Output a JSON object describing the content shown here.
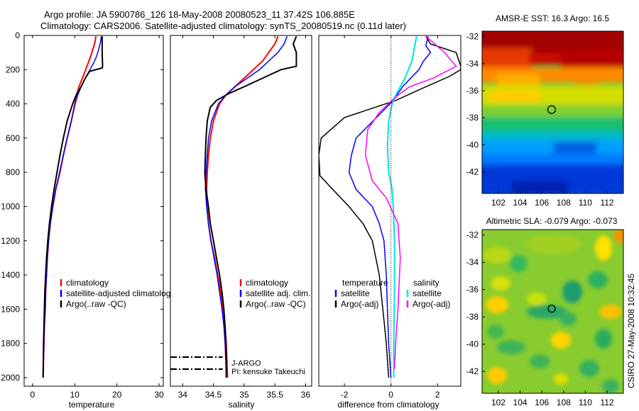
{
  "title_line1": "Argo profile: JA 5900786_126 18-May-2008 20080523_11 37.42S 106.885E",
  "title_line2": "Climatology: CARS2006. Satellite-adjusted climatology: synTS_20080519.nc (0.11d later)",
  "side_label": "CSIRO 27-May-2008 10:32:45",
  "colors": {
    "climatology": "#ff0000",
    "satellite": "#0000ff",
    "argo": "#000000",
    "sal_satellite": "#00e5e5",
    "sal_argo": "#ff00ff"
  },
  "chart_data": [
    {
      "type": "line",
      "xlabel": "temperature",
      "xlim": [
        -2,
        31
      ],
      "ylim": [
        2050,
        0
      ],
      "reversed_y": true,
      "xticks": [
        0,
        10,
        20,
        30
      ],
      "yticks": [
        0,
        200,
        400,
        600,
        800,
        1000,
        1200,
        1400,
        1600,
        1800,
        2000
      ],
      "legend": [
        "climatology",
        "satellite-adjusted climatology",
        "Argo(..raw -QC)"
      ],
      "series": [
        {
          "name": "climatology",
          "color": "#ff0000",
          "width": 2,
          "points": [
            [
              15,
              5
            ],
            [
              14.8,
              40
            ],
            [
              14.3,
              80
            ],
            [
              13.8,
              120
            ],
            [
              13.2,
              160
            ],
            [
              12.6,
              200
            ],
            [
              11.8,
              250
            ],
            [
              11,
              300
            ],
            [
              10.4,
              350
            ],
            [
              10,
              400
            ],
            [
              9.2,
              500
            ],
            [
              8.2,
              600
            ],
            [
              7.3,
              700
            ],
            [
              6.5,
              800
            ],
            [
              5.5,
              900
            ],
            [
              4.8,
              1000
            ],
            [
              4.2,
              1100
            ],
            [
              3.8,
              1200
            ],
            [
              3.5,
              1300
            ],
            [
              3.3,
              1400
            ],
            [
              3.1,
              1500
            ],
            [
              3.0,
              1600
            ],
            [
              2.8,
              1700
            ],
            [
              2.7,
              1800
            ],
            [
              2.6,
              1900
            ],
            [
              2.5,
              2000
            ]
          ]
        },
        {
          "name": "satellite-adjusted climatology",
          "color": "#0000ff",
          "width": 1.5,
          "points": [
            [
              16.3,
              5
            ],
            [
              16.1,
              40
            ],
            [
              15.7,
              80
            ],
            [
              15.2,
              120
            ],
            [
              14.5,
              160
            ],
            [
              13.6,
              200
            ],
            [
              12.5,
              250
            ],
            [
              11.5,
              300
            ],
            [
              10.7,
              350
            ],
            [
              10.1,
              400
            ],
            [
              9.2,
              500
            ],
            [
              8.2,
              600
            ],
            [
              7.3,
              700
            ],
            [
              6.4,
              800
            ],
            [
              5.5,
              900
            ],
            [
              4.8,
              1000
            ],
            [
              4.2,
              1100
            ],
            [
              3.8,
              1200
            ],
            [
              3.5,
              1300
            ],
            [
              3.3,
              1400
            ],
            [
              3.1,
              1500
            ],
            [
              3.0,
              1600
            ],
            [
              2.8,
              1700
            ],
            [
              2.7,
              1800
            ],
            [
              2.6,
              1900
            ],
            [
              2.5,
              2000
            ]
          ]
        },
        {
          "name": "Argo(..raw -QC)",
          "color": "#000000",
          "width": 2,
          "points": [
            [
              16.5,
              5
            ],
            [
              16.5,
              100
            ],
            [
              16.6,
              180
            ],
            [
              16.5,
              190
            ],
            [
              13.5,
              210
            ],
            [
              12.5,
              250
            ],
            [
              11.5,
              300
            ],
            [
              10.3,
              350
            ],
            [
              9.5,
              400
            ],
            [
              8.2,
              500
            ],
            [
              7.3,
              600
            ],
            [
              6.5,
              700
            ],
            [
              5.8,
              800
            ],
            [
              5.1,
              900
            ],
            [
              4.5,
              1000
            ],
            [
              4.0,
              1100
            ],
            [
              3.6,
              1200
            ],
            [
              3.3,
              1300
            ],
            [
              3.1,
              1400
            ],
            [
              2.9,
              1500
            ],
            [
              2.8,
              1600
            ],
            [
              2.7,
              1700
            ],
            [
              2.6,
              1800
            ],
            [
              2.55,
              1900
            ],
            [
              2.5,
              2000
            ]
          ]
        }
      ]
    },
    {
      "type": "line",
      "xlabel": "salinity",
      "xlim": [
        33.8,
        36.1
      ],
      "ylim": [
        2050,
        0
      ],
      "reversed_y": true,
      "xticks": [
        34,
        34.5,
        35,
        35.5,
        36
      ],
      "legend": [
        "climatology",
        "satellite adj. clim.",
        "Argo(..raw -QC)"
      ],
      "annotations": [
        "J-ARGO",
        "PI: kensuke Takeuchi"
      ],
      "marker_lines": [
        {
          "depth": 1880,
          "x_from": 33.8,
          "x_to": 34.65
        },
        {
          "depth": 1950,
          "x_from": 33.8,
          "x_to": 34.65
        }
      ],
      "series": [
        {
          "name": "climatology",
          "color": "#ff0000",
          "width": 2,
          "points": [
            [
              35.55,
              5
            ],
            [
              35.5,
              50
            ],
            [
              35.4,
              100
            ],
            [
              35.3,
              150
            ],
            [
              35.15,
              200
            ],
            [
              35.0,
              250
            ],
            [
              34.85,
              300
            ],
            [
              34.7,
              350
            ],
            [
              34.6,
              400
            ],
            [
              34.5,
              500
            ],
            [
              34.45,
              600
            ],
            [
              34.42,
              700
            ],
            [
              34.4,
              800
            ],
            [
              34.39,
              900
            ],
            [
              34.4,
              1000
            ],
            [
              34.42,
              1100
            ],
            [
              34.46,
              1200
            ],
            [
              34.52,
              1300
            ],
            [
              34.57,
              1400
            ],
            [
              34.62,
              1500
            ],
            [
              34.66,
              1600
            ],
            [
              34.69,
              1700
            ],
            [
              34.71,
              1800
            ],
            [
              34.72,
              1900
            ],
            [
              34.73,
              2000
            ]
          ]
        },
        {
          "name": "satellite adj. clim.",
          "color": "#0000ff",
          "width": 1.5,
          "points": [
            [
              35.7,
              5
            ],
            [
              35.65,
              50
            ],
            [
              35.55,
              100
            ],
            [
              35.4,
              150
            ],
            [
              35.25,
              200
            ],
            [
              35.05,
              250
            ],
            [
              34.85,
              300
            ],
            [
              34.7,
              350
            ],
            [
              34.58,
              400
            ],
            [
              34.47,
              500
            ],
            [
              34.42,
              600
            ],
            [
              34.4,
              700
            ],
            [
              34.38,
              800
            ],
            [
              34.37,
              900
            ],
            [
              34.39,
              1000
            ],
            [
              34.42,
              1100
            ],
            [
              34.46,
              1200
            ],
            [
              34.51,
              1300
            ],
            [
              34.56,
              1400
            ],
            [
              34.6,
              1500
            ],
            [
              34.64,
              1600
            ],
            [
              34.67,
              1700
            ],
            [
              34.69,
              1800
            ],
            [
              34.7,
              1900
            ],
            [
              34.71,
              2000
            ]
          ]
        },
        {
          "name": "Argo(..raw -QC)",
          "color": "#000000",
          "width": 2,
          "points": [
            [
              35.85,
              5
            ],
            [
              35.8,
              50
            ],
            [
              35.85,
              100
            ],
            [
              35.85,
              180
            ],
            [
              35.6,
              200
            ],
            [
              35.3,
              250
            ],
            [
              35.0,
              300
            ],
            [
              34.75,
              340
            ],
            [
              34.55,
              380
            ],
            [
              34.45,
              420
            ],
            [
              34.4,
              500
            ],
            [
              34.38,
              600
            ],
            [
              34.37,
              700
            ],
            [
              34.36,
              800
            ],
            [
              34.38,
              900
            ],
            [
              34.4,
              950
            ],
            [
              34.42,
              1000
            ],
            [
              34.45,
              1100
            ],
            [
              34.5,
              1200
            ],
            [
              34.55,
              1300
            ],
            [
              34.6,
              1400
            ],
            [
              34.64,
              1500
            ],
            [
              34.67,
              1600
            ],
            [
              34.69,
              1700
            ],
            [
              34.7,
              1800
            ],
            [
              34.71,
              1900
            ],
            [
              34.71,
              2000
            ]
          ]
        }
      ]
    },
    {
      "type": "line",
      "xlabel": "difference from climatology",
      "xlim": [
        -3.1,
        3
      ],
      "ylim": [
        2050,
        0
      ],
      "reversed_y": true,
      "xticks": [
        -2,
        0,
        2
      ],
      "zero_line": true,
      "legend_left_title": "temperature",
      "legend_left": [
        "satellite",
        "Argo(-adj)"
      ],
      "legend_right_title": "salinity",
      "legend_right": [
        "satellite",
        "Argo(-adj)"
      ],
      "series": [
        {
          "name": "temperature satellite",
          "color": "#0000ff",
          "width": 1.5,
          "points": [
            [
              1.6,
              5
            ],
            [
              1.5,
              60
            ],
            [
              1.7,
              100
            ],
            [
              1.4,
              150
            ],
            [
              1.2,
              200
            ],
            [
              0.5,
              300
            ],
            [
              0.1,
              380
            ],
            [
              -1.5,
              600
            ],
            [
              -1.7,
              700
            ],
            [
              -1.8,
              800
            ],
            [
              -1.5,
              900
            ],
            [
              -0.8,
              1000
            ],
            [
              -0.5,
              1100
            ],
            [
              -0.3,
              1200
            ],
            [
              -0.2,
              1400
            ],
            [
              -0.15,
              1600
            ],
            [
              -0.1,
              1800
            ],
            [
              0,
              2000
            ]
          ]
        },
        {
          "name": "temperature Argo(-adj)",
          "color": "#000000",
          "width": 1.5,
          "points": [
            [
              1.5,
              5
            ],
            [
              1.7,
              50
            ],
            [
              2.8,
              100
            ],
            [
              3.0,
              180
            ],
            [
              3.0,
              200
            ],
            [
              2.5,
              240
            ],
            [
              1.5,
              300
            ],
            [
              0.2,
              380
            ],
            [
              -2,
              480
            ],
            [
              -3,
              600
            ],
            [
              -3.1,
              700
            ],
            [
              -3.05,
              820
            ],
            [
              -2.5,
              900
            ],
            [
              -1.8,
              1000
            ],
            [
              -1.2,
              1100
            ],
            [
              -0.8,
              1200
            ],
            [
              -0.5,
              1400
            ],
            [
              -0.35,
              1600
            ],
            [
              -0.2,
              1800
            ],
            [
              -0.1,
              2000
            ]
          ]
        },
        {
          "name": "salinity satellite",
          "color": "#00e5e5",
          "width": 2,
          "points": [
            [
              1.1,
              5
            ],
            [
              1.0,
              80
            ],
            [
              0.9,
              150
            ],
            [
              0.6,
              250
            ],
            [
              0.2,
              350
            ],
            [
              0.05,
              400
            ],
            [
              -0.1,
              500
            ],
            [
              -0.15,
              650
            ],
            [
              -0.1,
              800
            ],
            [
              0.05,
              900
            ],
            [
              0.1,
              1000
            ],
            [
              0.15,
              1200
            ],
            [
              0.15,
              1500
            ],
            [
              0.12,
              1800
            ],
            [
              0.12,
              2000
            ]
          ]
        },
        {
          "name": "salinity Argo(-adj)",
          "color": "#ff00ff",
          "width": 1.5,
          "points": [
            [
              1.5,
              5
            ],
            [
              2.3,
              100
            ],
            [
              2.8,
              180
            ],
            [
              1.8,
              250
            ],
            [
              0.8,
              300
            ],
            [
              0.2,
              360
            ],
            [
              -0.5,
              450
            ],
            [
              -1.0,
              550
            ],
            [
              -1.1,
              700
            ],
            [
              -0.8,
              850
            ],
            [
              -0.2,
              950
            ],
            [
              0.3,
              1100
            ],
            [
              0.4,
              1300
            ],
            [
              0.3,
              1600
            ],
            [
              0.2,
              1800
            ],
            [
              0.15,
              1950
            ]
          ]
        }
      ]
    },
    {
      "type": "heatmap",
      "title": "AMSR-E SST: 16.3 Argo: 16.5",
      "xlim": [
        100.5,
        113.5
      ],
      "ylim": [
        -43.6,
        -31.6
      ],
      "xticks": [
        102,
        104,
        106,
        108,
        110,
        112
      ],
      "yticks": [
        -32,
        -34,
        -36,
        -38,
        -40,
        -42
      ],
      "marker": {
        "lon": 106.9,
        "lat": -37.4
      },
      "colorscale": "jet"
    },
    {
      "type": "heatmap",
      "title": "Altimetric SLA: -0.079 Argo: -0.073",
      "xlim": [
        100.5,
        113.5
      ],
      "ylim": [
        -43.6,
        -31.6
      ],
      "xticks": [
        102,
        104,
        106,
        108,
        110,
        112
      ],
      "yticks": [
        -32,
        -34,
        -36,
        -38,
        -40,
        -42
      ],
      "marker": {
        "lon": 106.9,
        "lat": -37.4
      },
      "colorscale": "jet"
    }
  ]
}
